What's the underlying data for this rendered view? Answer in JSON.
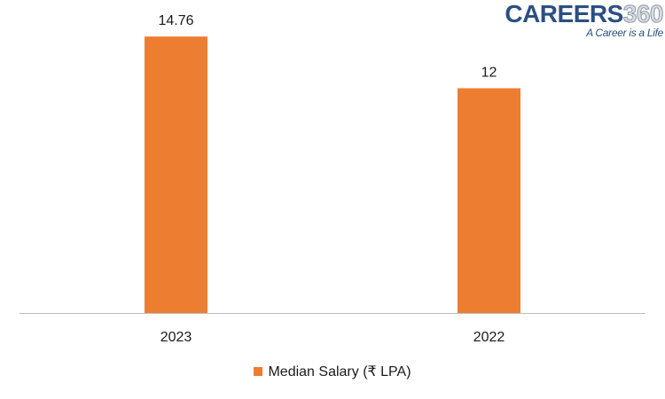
{
  "logo": {
    "brand": "CAREERS",
    "brand_number": "360",
    "tagline": "A Career is a Life"
  },
  "colors": {
    "bar": "#ED7D31",
    "axis": "#bfbfbf",
    "text": "#1a1a1a"
  },
  "chart_data": {
    "type": "bar",
    "categories": [
      "2023",
      "2022"
    ],
    "series": [
      {
        "name": "Median Salary (₹ LPA)",
        "values": [
          14.76,
          12
        ],
        "labels": [
          "14.76",
          "12"
        ]
      }
    ],
    "ylim": [
      0,
      16
    ],
    "grid": false,
    "legend_position": "bottom"
  }
}
